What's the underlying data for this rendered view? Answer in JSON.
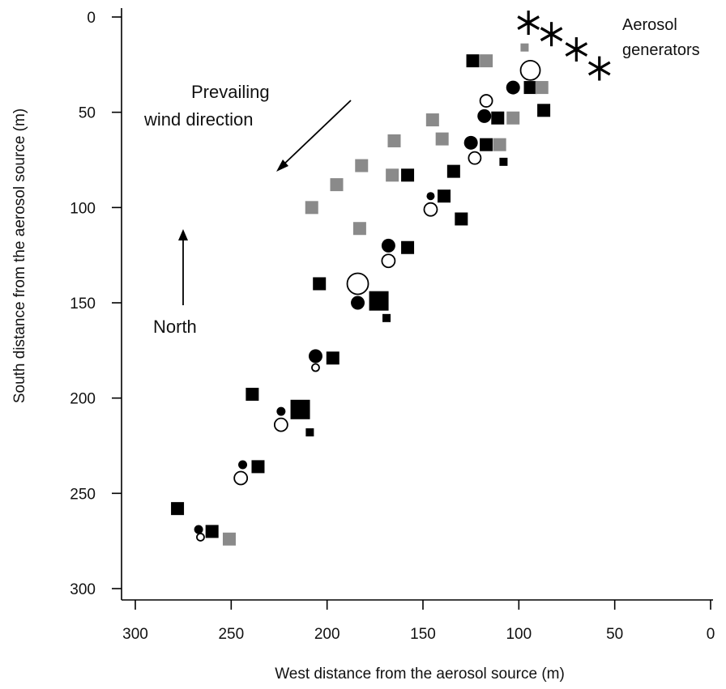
{
  "chart_data": {
    "type": "scatter",
    "xlabel": "West distance from the aerosol source (m)",
    "ylabel": "South distance from the aerosol source (m)",
    "xlim": [
      300,
      0
    ],
    "ylim": [
      0,
      300
    ],
    "x_ticks": [
      300,
      250,
      200,
      150,
      100,
      50,
      0
    ],
    "y_ticks": [
      0,
      50,
      100,
      150,
      200,
      250,
      300
    ],
    "x_reversed": true,
    "y_inverted": true,
    "grid": false,
    "legend": "none",
    "annotations": {
      "aerosol_line1": "Aerosol",
      "aerosol_line2": "generators",
      "wind_line1": "Prevailing",
      "wind_line2": "wind direction",
      "north": "North"
    },
    "colors": {
      "black": "#000000",
      "gray": "#8a8a8a",
      "open_fill": "#ffffff"
    },
    "series": [
      {
        "marker": "asterisk",
        "color": "#000000",
        "points": [
          [
            95,
            3,
            30
          ],
          [
            83,
            9,
            30
          ],
          [
            70,
            17,
            30
          ],
          [
            58,
            27,
            30
          ]
        ]
      },
      {
        "marker": "square",
        "color": "#000000",
        "points": [
          [
            124,
            23,
            16
          ],
          [
            94,
            37,
            16
          ],
          [
            87,
            49,
            16
          ],
          [
            111,
            53,
            16
          ],
          [
            117,
            67,
            16
          ],
          [
            108,
            76,
            10
          ],
          [
            134,
            81,
            16
          ],
          [
            158,
            83,
            16
          ],
          [
            139,
            94,
            16
          ],
          [
            130,
            106,
            16
          ],
          [
            158,
            121,
            16
          ],
          [
            204,
            140,
            16
          ],
          [
            173,
            149,
            24
          ],
          [
            169,
            158,
            10
          ],
          [
            197,
            179,
            16
          ],
          [
            239,
            198,
            16
          ],
          [
            214,
            206,
            24
          ],
          [
            209,
            218,
            10
          ],
          [
            236,
            236,
            16
          ],
          [
            278,
            258,
            16
          ],
          [
            260,
            270,
            16
          ]
        ]
      },
      {
        "marker": "square",
        "color": "#8a8a8a",
        "points": [
          [
            117,
            23,
            16
          ],
          [
            97,
            16,
            10
          ],
          [
            88,
            37,
            16
          ],
          [
            103,
            53,
            16
          ],
          [
            145,
            54,
            16
          ],
          [
            165,
            65,
            16
          ],
          [
            140,
            64,
            16
          ],
          [
            110,
            67,
            16
          ],
          [
            182,
            78,
            16
          ],
          [
            166,
            83,
            16
          ],
          [
            195,
            88,
            16
          ],
          [
            208,
            100,
            16
          ],
          [
            183,
            111,
            16
          ],
          [
            251,
            274,
            16
          ]
        ]
      },
      {
        "marker": "circle",
        "color": "#000000",
        "points": [
          [
            103,
            37,
            17
          ],
          [
            118,
            52,
            17
          ],
          [
            125,
            66,
            17
          ],
          [
            146,
            94,
            10
          ],
          [
            168,
            120,
            17
          ],
          [
            184,
            150,
            17
          ],
          [
            206,
            178,
            17
          ],
          [
            224,
            207,
            11
          ],
          [
            244,
            235,
            11
          ],
          [
            267,
            269,
            11
          ]
        ]
      },
      {
        "marker": "open-circle",
        "color": "#000000",
        "points": [
          [
            94,
            28,
            26
          ],
          [
            117,
            44,
            17
          ],
          [
            123,
            74,
            17
          ],
          [
            146,
            101,
            18
          ],
          [
            168,
            128,
            18
          ],
          [
            184,
            140,
            28
          ],
          [
            206,
            184,
            11
          ],
          [
            224,
            214,
            18
          ],
          [
            245,
            242,
            18
          ],
          [
            266,
            273,
            11
          ]
        ]
      }
    ]
  }
}
